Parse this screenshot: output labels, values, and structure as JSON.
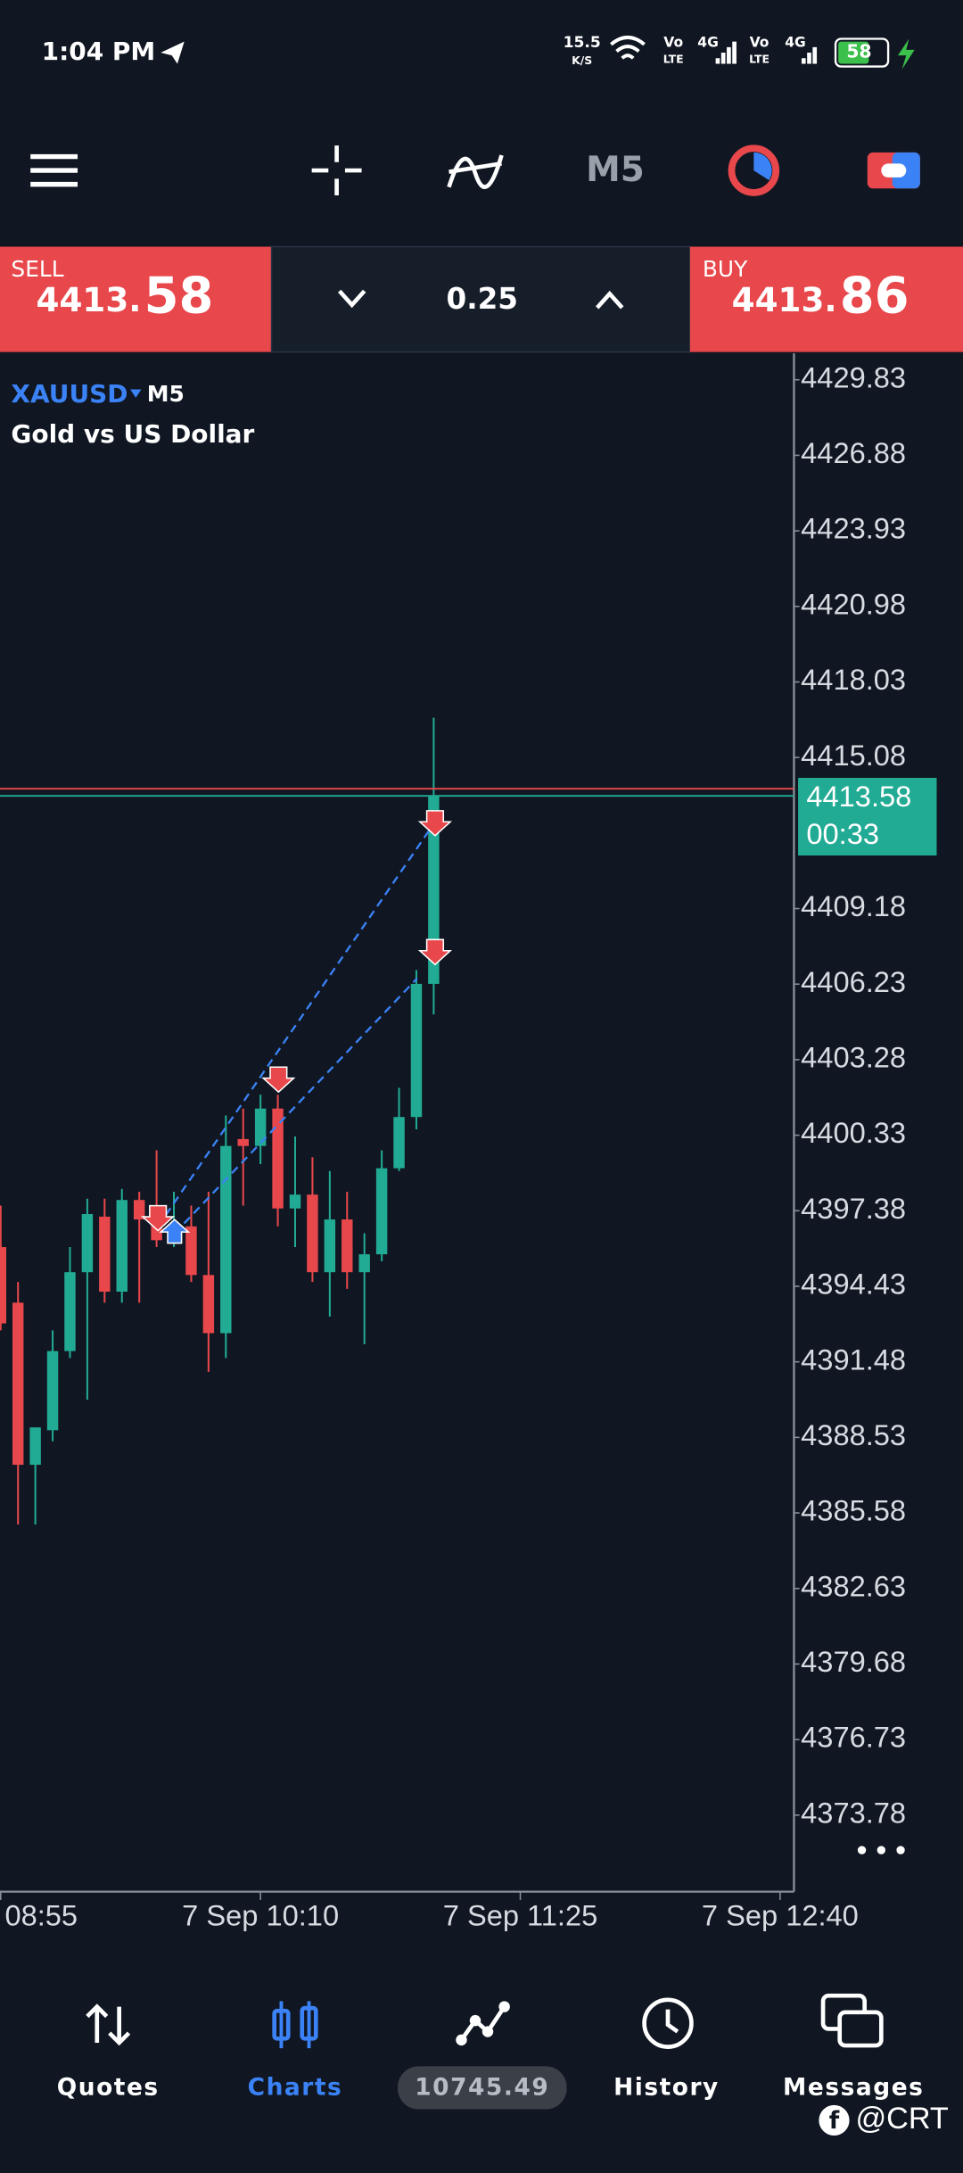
{
  "status_bar": {
    "time": "1:04 PM",
    "speed": "15.5",
    "speed_unit": "K/S",
    "vo": "Vo",
    "lte": "LTE",
    "net": "4G",
    "battery": "58"
  },
  "toolbar": {
    "timeframe": "M5"
  },
  "trade_panel": {
    "sell_label": "SELL",
    "sell_price_main": "4413.",
    "sell_price_big": "58",
    "volume": "0.25",
    "buy_label": "BUY",
    "buy_price_main": "4413.",
    "buy_price_big": "86"
  },
  "chart_data": {
    "type": "candlestick",
    "symbol": "XAUUSD",
    "timeframe": "M5",
    "subtitle": "Gold vs US Dollar",
    "x": [
      0,
      1,
      2,
      3,
      4,
      5,
      6,
      7,
      8,
      9,
      10,
      11,
      12,
      13,
      14,
      15,
      16,
      17,
      18,
      19,
      20,
      21,
      22,
      23,
      24,
      25
    ],
    "open": [
      4395.96,
      4393.79,
      4387.46,
      4388.81,
      4391.9,
      4394.98,
      4397.15,
      4394.22,
      4397.8,
      4397.58,
      4396.23,
      4396.77,
      4394.87,
      4392.6,
      4400.18,
      4399.91,
      4401.37,
      4397.47,
      4398.01,
      4394.98,
      4397.04,
      4394.98,
      4395.68,
      4399.04,
      4401.04,
      4406.24
    ],
    "high": [
      4397.58,
      4394.6,
      4388.38,
      4392.71,
      4395.96,
      4397.85,
      4397.85,
      4398.23,
      4398.12,
      4399.74,
      4398.12,
      4397.58,
      4398.12,
      4401.1,
      4401.37,
      4401.91,
      4401.91,
      4400.28,
      4399.47,
      4398.93,
      4398.12,
      4396.5,
      4399.74,
      4402.18,
      4406.78,
      4416.63
    ],
    "low": [
      4392.71,
      4385.13,
      4385.13,
      4388.38,
      4391.63,
      4390.0,
      4393.79,
      4393.79,
      4393.79,
      4395.96,
      4395.96,
      4394.6,
      4391.09,
      4391.63,
      4397.58,
      4399.2,
      4396.77,
      4395.96,
      4394.6,
      4393.25,
      4394.33,
      4392.17,
      4395.41,
      4398.93,
      4400.56,
      4405.05
    ],
    "close": [
      4392.98,
      4387.46,
      4388.92,
      4391.9,
      4394.98,
      4397.25,
      4394.22,
      4397.8,
      4397.04,
      4396.23,
      4396.77,
      4394.87,
      4392.6,
      4399.91,
      4399.91,
      4401.37,
      4397.47,
      4398.01,
      4394.98,
      4397.04,
      4394.98,
      4395.68,
      4399.04,
      4401.04,
      4406.24,
      4413.58
    ],
    "up_color": "#22ab94",
    "down_color": "#e8474b",
    "xlim": [
      -0.04,
      45.8
    ],
    "xticks": [
      {
        "value": 0,
        "label": "08:55"
      },
      {
        "value": 15,
        "label": "7 Sep 10:10"
      },
      {
        "value": 30,
        "label": "7 Sep 11:25"
      },
      {
        "value": 45,
        "label": "7 Sep 12:40"
      }
    ],
    "ylim": [
      4370.79,
      4430.86
    ],
    "yticks": [
      4429.83,
      4426.88,
      4423.93,
      4420.98,
      4418.03,
      4415.08,
      4409.18,
      4406.23,
      4403.28,
      4400.33,
      4397.38,
      4394.43,
      4391.48,
      4388.53,
      4385.58,
      4382.63,
      4379.68,
      4376.73,
      4373.78
    ],
    "bid": 4413.58,
    "ask": 4413.86,
    "bid_color": "#22ab94",
    "ask_color": "#e8474b",
    "countdown": "00:33"
  },
  "bottom_nav": {
    "items": [
      "Quotes",
      "Charts",
      "History",
      "Messages"
    ],
    "balance": "10745.49"
  },
  "watermark": "@CRT"
}
